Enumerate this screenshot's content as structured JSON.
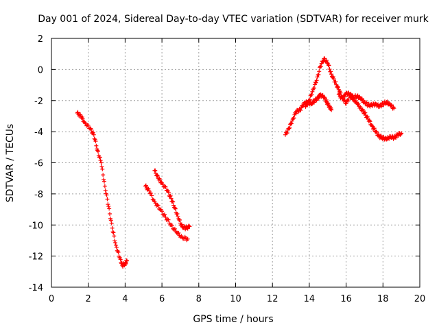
{
  "chart_data": {
    "type": "scatter",
    "title": "Day 001 of 2024, Sidereal Day-to-day VTEC variation (SDTVAR) for receiver murk",
    "xlabel": "GPS time / hours",
    "ylabel": "SDTVAR / TECUs",
    "xlim": [
      0,
      20
    ],
    "ylim": [
      -14,
      2
    ],
    "xticks": [
      "0",
      "2",
      "4",
      "6",
      "8",
      "10",
      "12",
      "14",
      "16",
      "18",
      "20"
    ],
    "yticks": [
      "2",
      "0",
      "-2",
      "-4",
      "-6",
      "-8",
      "-10",
      "-12",
      "-14"
    ],
    "grid": true,
    "marker": "plus",
    "color": "#ff0000",
    "series": [
      {
        "name": "segment-1",
        "points": [
          [
            1.4,
            -2.8
          ],
          [
            1.6,
            -3.0
          ],
          [
            1.8,
            -3.4
          ],
          [
            2.1,
            -3.8
          ],
          [
            2.3,
            -4.2
          ],
          [
            2.5,
            -5.2
          ],
          [
            2.7,
            -6.0
          ],
          [
            2.9,
            -7.5
          ],
          [
            3.1,
            -8.8
          ],
          [
            3.3,
            -10.2
          ],
          [
            3.5,
            -11.3
          ],
          [
            3.7,
            -12.1
          ],
          [
            3.85,
            -12.6
          ],
          [
            4.0,
            -12.5
          ],
          [
            4.1,
            -12.3
          ]
        ]
      },
      {
        "name": "segment-2a",
        "points": [
          [
            5.1,
            -7.5
          ],
          [
            5.3,
            -7.8
          ],
          [
            5.6,
            -8.5
          ],
          [
            5.9,
            -9.0
          ],
          [
            6.2,
            -9.5
          ],
          [
            6.5,
            -10.0
          ],
          [
            6.8,
            -10.5
          ],
          [
            7.1,
            -10.8
          ],
          [
            7.4,
            -10.9
          ]
        ]
      },
      {
        "name": "segment-2b",
        "points": [
          [
            5.6,
            -6.5
          ],
          [
            5.8,
            -7.0
          ],
          [
            6.0,
            -7.3
          ],
          [
            6.3,
            -7.8
          ],
          [
            6.5,
            -8.3
          ],
          [
            6.7,
            -8.9
          ],
          [
            6.9,
            -9.6
          ],
          [
            7.1,
            -10.1
          ],
          [
            7.3,
            -10.2
          ],
          [
            7.5,
            -10.1
          ]
        ]
      },
      {
        "name": "segment-3a",
        "points": [
          [
            12.7,
            -4.2
          ],
          [
            12.9,
            -3.8
          ],
          [
            13.1,
            -3.2
          ],
          [
            13.3,
            -2.7
          ],
          [
            13.5,
            -2.6
          ],
          [
            13.7,
            -2.2
          ],
          [
            13.9,
            -2.1
          ],
          [
            14.1,
            -2.2
          ],
          [
            14.3,
            -2.0
          ],
          [
            14.5,
            -1.8
          ],
          [
            14.6,
            -1.6
          ],
          [
            14.8,
            -1.8
          ],
          [
            14.95,
            -2.1
          ],
          [
            15.1,
            -2.4
          ],
          [
            15.2,
            -2.6
          ]
        ]
      },
      {
        "name": "segment-3b",
        "points": [
          [
            13.8,
            -2.4
          ],
          [
            14.0,
            -2.0
          ],
          [
            14.2,
            -1.3
          ],
          [
            14.4,
            -0.7
          ],
          [
            14.6,
            0.2
          ],
          [
            14.8,
            0.7
          ],
          [
            15.0,
            0.4
          ],
          [
            15.2,
            -0.3
          ],
          [
            15.4,
            -0.8
          ],
          [
            15.6,
            -1.3
          ],
          [
            15.8,
            -1.8
          ],
          [
            16.0,
            -2.2
          ],
          [
            16.2,
            -1.7
          ],
          [
            16.4,
            -1.9
          ],
          [
            16.6,
            -2.2
          ],
          [
            16.8,
            -2.5
          ],
          [
            17.0,
            -2.8
          ],
          [
            17.2,
            -3.2
          ],
          [
            17.4,
            -3.6
          ],
          [
            17.6,
            -4.0
          ],
          [
            17.8,
            -4.3
          ],
          [
            18.0,
            -4.4
          ],
          [
            18.2,
            -4.5
          ],
          [
            18.4,
            -4.3
          ],
          [
            18.6,
            -4.4
          ],
          [
            18.8,
            -4.2
          ],
          [
            19.0,
            -4.1
          ]
        ]
      },
      {
        "name": "segment-3c",
        "points": [
          [
            15.6,
            -1.6
          ],
          [
            15.8,
            -1.9
          ],
          [
            16.0,
            -1.5
          ],
          [
            16.2,
            -1.6
          ],
          [
            16.4,
            -1.8
          ],
          [
            16.6,
            -1.7
          ],
          [
            16.8,
            -1.9
          ],
          [
            17.0,
            -2.1
          ],
          [
            17.2,
            -2.3
          ],
          [
            17.4,
            -2.3
          ],
          [
            17.6,
            -2.2
          ],
          [
            17.8,
            -2.4
          ],
          [
            18.0,
            -2.2
          ],
          [
            18.2,
            -2.1
          ],
          [
            18.4,
            -2.3
          ],
          [
            18.6,
            -2.5
          ]
        ]
      }
    ]
  }
}
